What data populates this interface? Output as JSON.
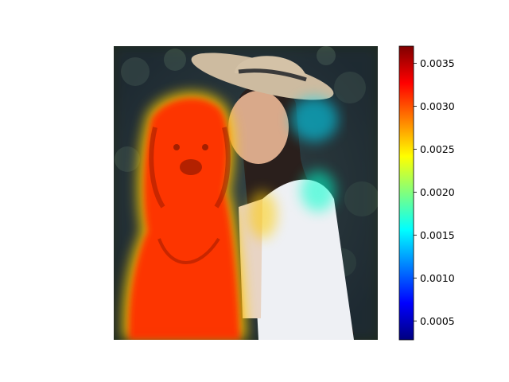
{
  "chart_data": {
    "type": "heatmap",
    "title": "",
    "description_overlay": "saliency heatmap overlaid on photo",
    "colormap": "jet",
    "colorbar": {
      "range": [
        0.00028,
        0.0037
      ],
      "ticks": [
        0.0005,
        0.001,
        0.0015,
        0.002,
        0.0025,
        0.003,
        0.0035
      ],
      "tick_labels": [
        "0.0005",
        "0.0010",
        "0.0015",
        "0.0020",
        "0.0025",
        "0.0030",
        "0.0035"
      ],
      "placement": "right"
    },
    "axes_visible": false,
    "regions": [
      {
        "name": "dog",
        "level": 0.0034
      },
      {
        "name": "person-face",
        "level": 0.0012
      },
      {
        "name": "background",
        "level": 0.00028
      }
    ]
  },
  "colors": {
    "jet": [
      "#00007f",
      "#0000ff",
      "#007fff",
      "#00ffff",
      "#7fff7f",
      "#ffff00",
      "#ff7f00",
      "#ff0000",
      "#7f0000"
    ],
    "foliage": "#2d3a2a",
    "shirt": "#eef0f4",
    "hat": "#cdbba0"
  }
}
